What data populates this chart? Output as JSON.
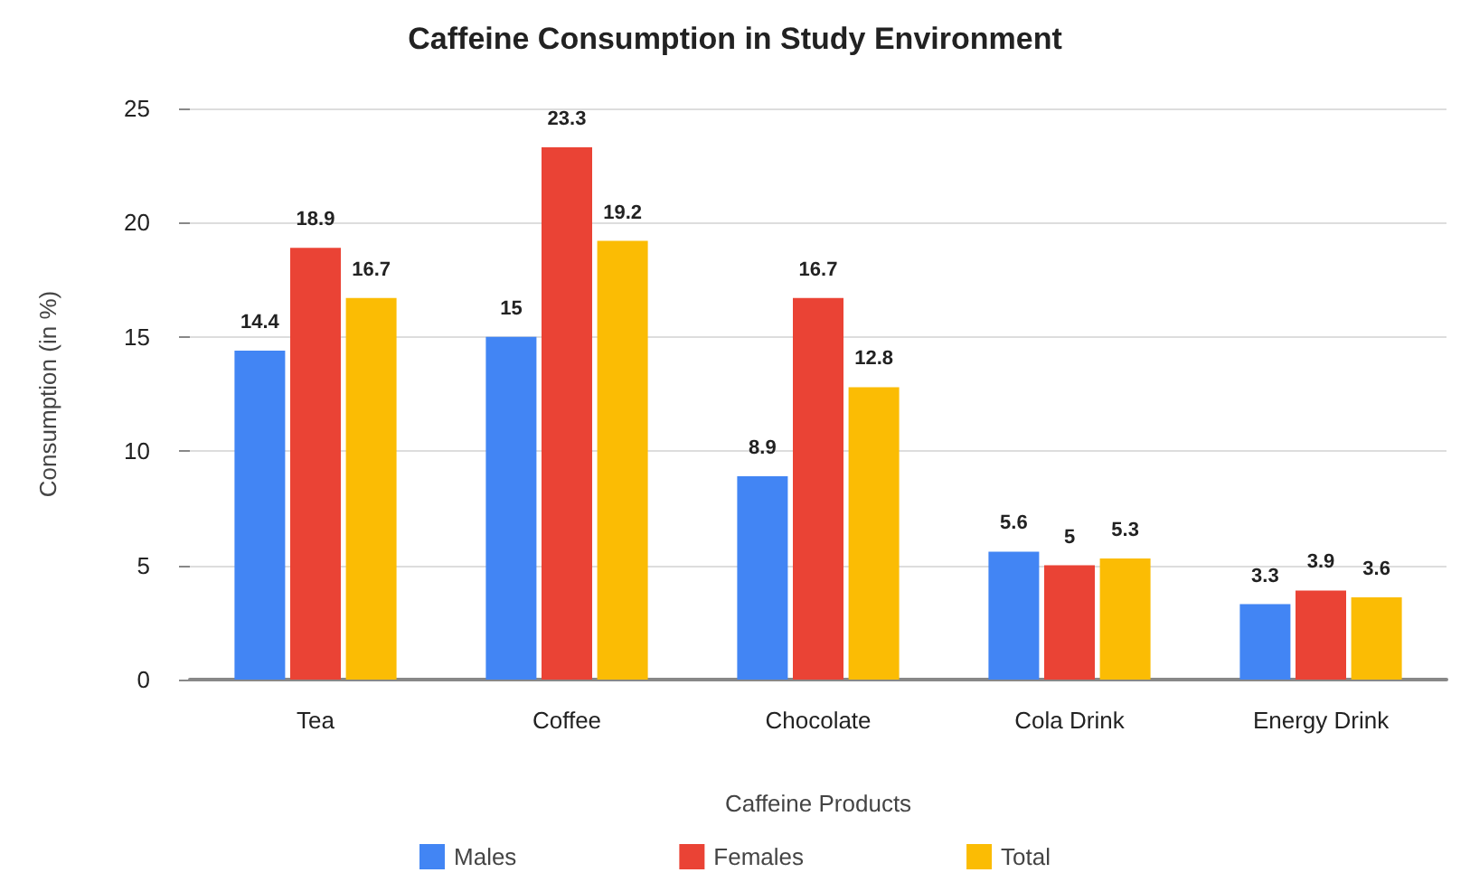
{
  "chart_data": {
    "type": "bar",
    "title": "Caffeine Consumption in Study Environment",
    "xlabel": "Caffeine Products",
    "ylabel": "Consumption (in %)",
    "categories": [
      "Tea",
      "Coffee",
      "Chocolate",
      "Cola Drink",
      "Energy Drink"
    ],
    "series": [
      {
        "name": "Males",
        "color": "#4285f4",
        "values": [
          14.4,
          15,
          8.9,
          5.6,
          3.3
        ]
      },
      {
        "name": "Females",
        "color": "#ea4335",
        "values": [
          18.9,
          23.3,
          16.7,
          5,
          3.9
        ]
      },
      {
        "name": "Total",
        "color": "#fbbc04",
        "values": [
          16.7,
          19.2,
          12.8,
          5.3,
          3.6
        ]
      }
    ],
    "ylim": [
      0,
      25
    ],
    "yticks": [
      0,
      5,
      10,
      15,
      20,
      25
    ],
    "grid": "y",
    "legend": "bottom",
    "data_labels": true
  }
}
